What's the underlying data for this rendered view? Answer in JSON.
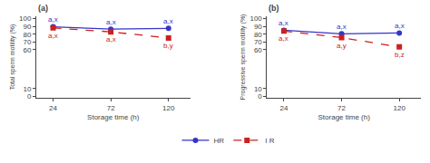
{
  "chart_data": [
    {
      "type": "line",
      "title": "(a)",
      "x_label": "Storage time (h)",
      "y_label": "Total sperm motility (%)",
      "x": [
        24,
        72,
        120
      ],
      "series": [
        {
          "name": "HR",
          "color": "#3535c8",
          "marker": "circle",
          "line_style": "solid",
          "values": [
            89.5,
            86.5,
            87.5
          ],
          "errors": [
            1.0,
            0.7,
            0.6
          ],
          "labels": [
            "a,x",
            "a,x",
            "a,x"
          ]
        },
        {
          "name": "I R",
          "color": "#cc2020",
          "marker": "square",
          "line_style": "dashed",
          "values": [
            88.0,
            83.0,
            75.0
          ],
          "errors": [
            0.9,
            1.0,
            0.8
          ],
          "labels": [
            "a,x",
            "a,x",
            "b,y"
          ]
        }
      ],
      "xlim": [
        10,
        138
      ],
      "xticks": [
        24,
        72,
        120
      ],
      "ylim": [
        -2,
        103
      ],
      "yticks": [
        0,
        10,
        60,
        70,
        80,
        90,
        100
      ],
      "grid": false,
      "legend": "bottom"
    },
    {
      "type": "line",
      "title": "(b)",
      "x_label": "Storage time (h)",
      "y_label": "Progressive sperm motility (%)",
      "x": [
        24,
        72,
        120
      ],
      "series": [
        {
          "name": "HR",
          "color": "#3535c8",
          "marker": "circle",
          "line_style": "solid",
          "values": [
            85.0,
            80.5,
            81.5
          ],
          "errors": [
            1.0,
            0.8,
            0.8
          ],
          "labels": [
            "a,x",
            "a,x",
            "a,x"
          ]
        },
        {
          "name": "I R",
          "color": "#cc2020",
          "marker": "square",
          "line_style": "dashed",
          "values": [
            84.0,
            75.5,
            63.5
          ],
          "errors": [
            1.0,
            1.2,
            1.0
          ],
          "labels": [
            "a,x",
            "a,y",
            "b,z"
          ]
        }
      ],
      "xlim": [
        10,
        138
      ],
      "xticks": [
        24,
        72,
        120
      ],
      "ylim": [
        -2,
        103
      ],
      "yticks": [
        0,
        10,
        60,
        70,
        80,
        90,
        100
      ],
      "grid": false,
      "legend": "bottom"
    }
  ]
}
